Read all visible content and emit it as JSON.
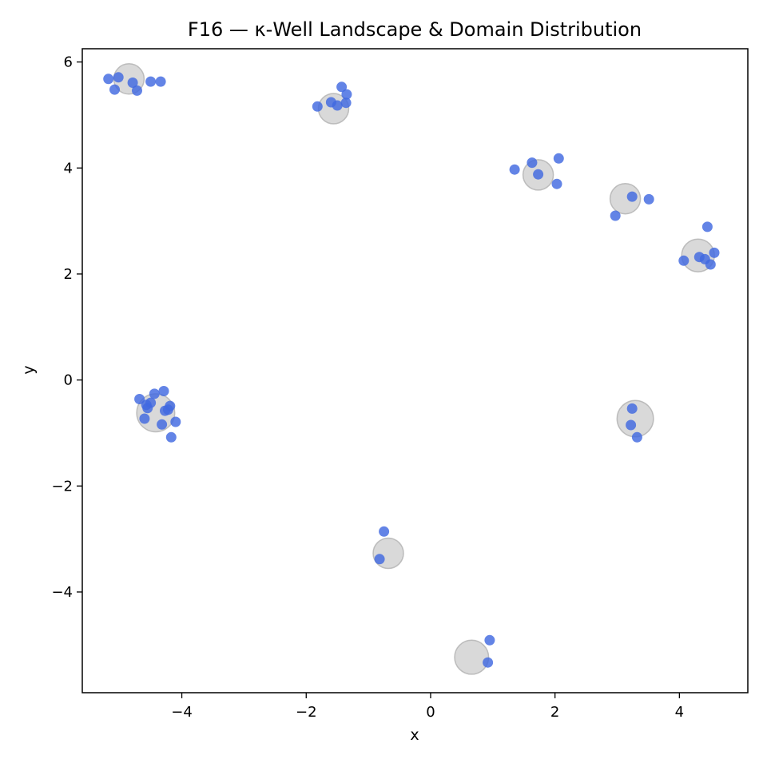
{
  "chart_data": {
    "type": "scatter",
    "title": "F16 — κ-Well Landscape & Domain Distribution",
    "xlabel": "x",
    "ylabel": "y",
    "xlim": [
      -5.6,
      5.1
    ],
    "ylim": [
      -5.9,
      6.25
    ],
    "x_ticks": [
      -4,
      -2,
      0,
      2,
      4
    ],
    "y_ticks": [
      -4,
      -2,
      0,
      2,
      4,
      6
    ],
    "x_tick_labels": [
      "−4",
      "−2",
      "0",
      "2",
      "4"
    ],
    "y_tick_labels": [
      "−4",
      "−2",
      "0",
      "2",
      "4",
      "6"
    ],
    "grid": false,
    "colors": {
      "wells": "#bfbfbf",
      "points": "#4169e1"
    },
    "series": [
      {
        "role": "wells",
        "points": [
          {
            "x": -4.85,
            "y": 5.68,
            "r": 1.0
          },
          {
            "x": -1.56,
            "y": 5.12,
            "r": 1.0
          },
          {
            "x": 1.73,
            "y": 3.87,
            "r": 1.0
          },
          {
            "x": 3.13,
            "y": 3.42,
            "r": 1.0
          },
          {
            "x": 4.3,
            "y": 2.35,
            "r": 1.08
          },
          {
            "x": -4.42,
            "y": -0.62,
            "r": 1.25
          },
          {
            "x": 3.29,
            "y": -0.73,
            "r": 1.2
          },
          {
            "x": -0.68,
            "y": -3.27,
            "r": 1.0
          },
          {
            "x": 0.66,
            "y": -5.23,
            "r": 1.12
          }
        ]
      },
      {
        "role": "points",
        "points": [
          {
            "x": -5.18,
            "y": 5.68
          },
          {
            "x": -5.02,
            "y": 5.71
          },
          {
            "x": -5.08,
            "y": 5.48
          },
          {
            "x": -4.79,
            "y": 5.61
          },
          {
            "x": -4.72,
            "y": 5.46
          },
          {
            "x": -4.5,
            "y": 5.63
          },
          {
            "x": -4.34,
            "y": 5.63
          },
          {
            "x": -1.82,
            "y": 5.16
          },
          {
            "x": -1.6,
            "y": 5.24
          },
          {
            "x": -1.5,
            "y": 5.18
          },
          {
            "x": -1.43,
            "y": 5.53
          },
          {
            "x": -1.35,
            "y": 5.39
          },
          {
            "x": -1.36,
            "y": 5.23
          },
          {
            "x": 1.35,
            "y": 3.97
          },
          {
            "x": 1.63,
            "y": 4.1
          },
          {
            "x": 1.73,
            "y": 3.88
          },
          {
            "x": 2.03,
            "y": 3.7
          },
          {
            "x": 2.06,
            "y": 4.18
          },
          {
            "x": 2.97,
            "y": 3.1
          },
          {
            "x": 3.24,
            "y": 3.46
          },
          {
            "x": 3.51,
            "y": 3.41
          },
          {
            "x": 4.07,
            "y": 2.25
          },
          {
            "x": 4.32,
            "y": 2.32
          },
          {
            "x": 4.41,
            "y": 2.28
          },
          {
            "x": 4.5,
            "y": 2.18
          },
          {
            "x": 4.56,
            "y": 2.4
          },
          {
            "x": 4.45,
            "y": 2.89
          },
          {
            "x": -4.68,
            "y": -0.36
          },
          {
            "x": -4.57,
            "y": -0.47
          },
          {
            "x": -4.55,
            "y": -0.53
          },
          {
            "x": -4.5,
            "y": -0.43
          },
          {
            "x": -4.44,
            "y": -0.26
          },
          {
            "x": -4.29,
            "y": -0.21
          },
          {
            "x": -4.19,
            "y": -0.49
          },
          {
            "x": -4.27,
            "y": -0.58
          },
          {
            "x": -4.22,
            "y": -0.56
          },
          {
            "x": -4.6,
            "y": -0.73
          },
          {
            "x": -4.1,
            "y": -0.79
          },
          {
            "x": -4.32,
            "y": -0.84
          },
          {
            "x": -4.17,
            "y": -1.08
          },
          {
            "x": 3.24,
            "y": -0.54
          },
          {
            "x": 3.22,
            "y": -0.85
          },
          {
            "x": 3.32,
            "y": -1.08
          },
          {
            "x": -0.75,
            "y": -2.86
          },
          {
            "x": -0.82,
            "y": -3.38
          },
          {
            "x": 0.95,
            "y": -4.91
          },
          {
            "x": 0.92,
            "y": -5.33
          }
        ]
      }
    ]
  }
}
